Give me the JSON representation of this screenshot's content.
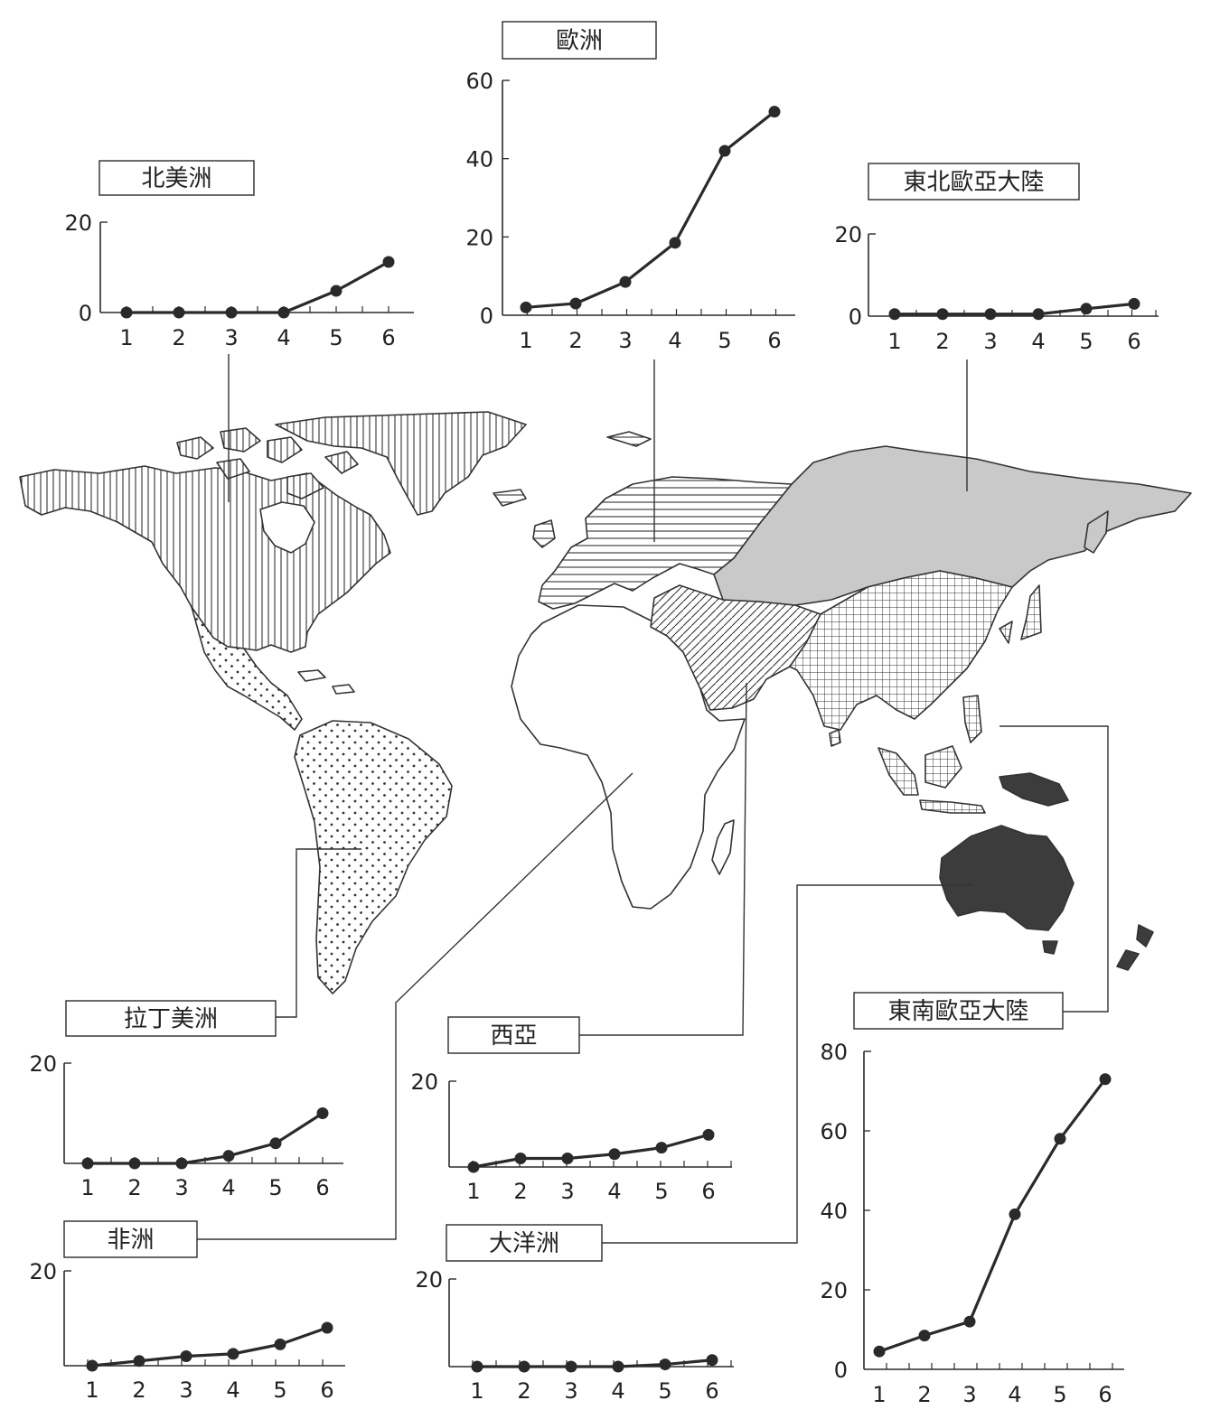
{
  "colors": {
    "ink": "#2a2a2a",
    "north_america_fill": "vertical-line-hatch",
    "europe_fill": "horizontal-line-hatch",
    "northeast_eurasia_fill": "#c9c9c9",
    "west_asia_fill": "diagonal-line-hatch",
    "southeast_eurasia_fill": "grid-hatch",
    "latin_america_fill": "dot-pattern",
    "oceania_fill": "#3c3c3c",
    "africa_fill": "#ffffff"
  },
  "chart_data": [
    {
      "id": "north_america",
      "type": "line",
      "title": "北美洲",
      "x": [
        1,
        2,
        3,
        4,
        5,
        6
      ],
      "values": [
        0,
        0,
        0,
        0,
        4.8,
        11.2
      ],
      "ylim": [
        0,
        20
      ],
      "yticks": [
        "0",
        "20"
      ],
      "grid": false
    },
    {
      "id": "europe",
      "type": "line",
      "title": "歐洲",
      "x": [
        1,
        2,
        3,
        4,
        5,
        6
      ],
      "values": [
        2,
        3,
        8.5,
        18.5,
        42,
        52
      ],
      "ylim": [
        0,
        60
      ],
      "yticks": [
        "0",
        "20",
        "40",
        "60"
      ],
      "grid": false
    },
    {
      "id": "northeast_eurasia",
      "type": "line",
      "title": "東北歐亞大陸",
      "x": [
        1,
        2,
        3,
        4,
        5,
        6
      ],
      "values": [
        0.5,
        0.5,
        0.5,
        0.5,
        1.8,
        3
      ],
      "ylim": [
        0,
        20
      ],
      "yticks": [
        "0",
        "20"
      ],
      "grid": false
    },
    {
      "id": "latin_america",
      "type": "line",
      "title": "拉丁美洲",
      "x": [
        1,
        2,
        3,
        4,
        5,
        6
      ],
      "values": [
        0,
        0,
        0,
        1.5,
        4,
        10
      ],
      "ylim": [
        0,
        20
      ],
      "yticks": [
        "20"
      ],
      "grid": false
    },
    {
      "id": "africa",
      "type": "line",
      "title": "非洲",
      "x": [
        1,
        2,
        3,
        4,
        5,
        6
      ],
      "values": [
        0,
        1,
        2,
        2.5,
        4.5,
        8
      ],
      "ylim": [
        0,
        20
      ],
      "yticks": [
        "20"
      ],
      "grid": false
    },
    {
      "id": "west_asia",
      "type": "line",
      "title": "西亞",
      "x": [
        1,
        2,
        3,
        4,
        5,
        6
      ],
      "values": [
        0,
        2,
        2,
        3,
        4.5,
        7.5
      ],
      "ylim": [
        0,
        20
      ],
      "yticks": [
        "20"
      ],
      "grid": false
    },
    {
      "id": "oceania",
      "type": "line",
      "title": "大洋洲",
      "x": [
        1,
        2,
        3,
        4,
        5,
        6
      ],
      "values": [
        0,
        0,
        0,
        0,
        0.5,
        1.5
      ],
      "ylim": [
        0,
        20
      ],
      "yticks": [
        "20"
      ],
      "grid": false
    },
    {
      "id": "southeast_eurasia",
      "type": "line",
      "title": "東南歐亞大陸",
      "x": [
        1,
        2,
        3,
        4,
        5,
        6
      ],
      "values": [
        4.5,
        8.5,
        12,
        39,
        58,
        73
      ],
      "ylim": [
        0,
        80
      ],
      "yticks": [
        "0",
        "20",
        "40",
        "60",
        "80"
      ],
      "grid": false
    }
  ]
}
